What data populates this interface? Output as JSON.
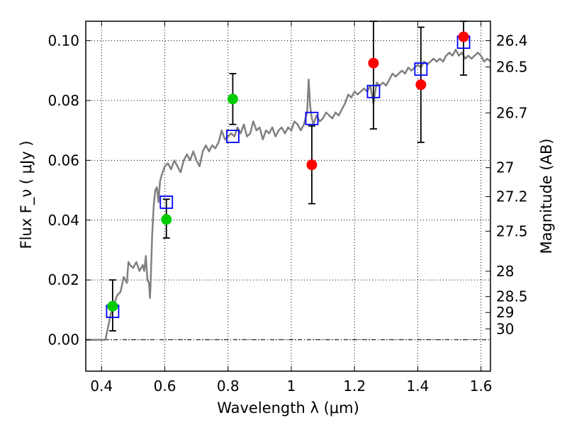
{
  "chart_data": {
    "type": "scatter",
    "xlabel": "Wavelength  λ (μm)",
    "ylabel": "Flux  F_ν  ( μJy )",
    "y2label": "Magnitude (AB)",
    "xlim": [
      0.35,
      1.63
    ],
    "ylim": [
      -0.0105,
      0.1065
    ],
    "grid": true,
    "x_ticks": [
      {
        "value": 0.4,
        "label": "0.4"
      },
      {
        "value": 0.6,
        "label": "0.6"
      },
      {
        "value": 0.8,
        "label": "0.8"
      },
      {
        "value": 1.0,
        "label": "1"
      },
      {
        "value": 1.2,
        "label": "1.2"
      },
      {
        "value": 1.4,
        "label": "1.4"
      },
      {
        "value": 1.6,
        "label": "1.6"
      }
    ],
    "y_ticks": [
      {
        "value": 0.0,
        "label": "0.00"
      },
      {
        "value": 0.02,
        "label": "0.02"
      },
      {
        "value": 0.04,
        "label": "0.04"
      },
      {
        "value": 0.06,
        "label": "0.06"
      },
      {
        "value": 0.08,
        "label": "0.08"
      },
      {
        "value": 0.1,
        "label": "0.10"
      }
    ],
    "right_ticks": [
      {
        "mag": 26.4,
        "label": "26.4"
      },
      {
        "mag": 26.5,
        "label": "26.5"
      },
      {
        "mag": 26.7,
        "label": "26.7"
      },
      {
        "mag": 27.0,
        "label": "27"
      },
      {
        "mag": 27.2,
        "label": "27.2"
      },
      {
        "mag": 27.5,
        "label": "27.5"
      },
      {
        "mag": 28.0,
        "label": "28"
      },
      {
        "mag": 28.5,
        "label": "28.5"
      },
      {
        "mag": 29.0,
        "label": "29"
      },
      {
        "mag": 30.0,
        "label": "30"
      }
    ],
    "series": [
      {
        "kind": "line",
        "color": "#808080",
        "points": [
          [
            0.35,
            0.0
          ],
          [
            0.412,
            0.0
          ],
          [
            0.42,
            0.004
          ],
          [
            0.43,
            0.009
          ],
          [
            0.44,
            0.012
          ],
          [
            0.45,
            0.015
          ],
          [
            0.46,
            0.016
          ],
          [
            0.47,
            0.021
          ],
          [
            0.48,
            0.019
          ],
          [
            0.485,
            0.026
          ],
          [
            0.49,
            0.025
          ],
          [
            0.5,
            0.024
          ],
          [
            0.51,
            0.026
          ],
          [
            0.52,
            0.023
          ],
          [
            0.53,
            0.025
          ],
          [
            0.535,
            0.023
          ],
          [
            0.54,
            0.028
          ],
          [
            0.545,
            0.02
          ],
          [
            0.55,
            0.019
          ],
          [
            0.553,
            0.014
          ],
          [
            0.555,
            0.018
          ],
          [
            0.56,
            0.035
          ],
          [
            0.565,
            0.045
          ],
          [
            0.57,
            0.05
          ],
          [
            0.575,
            0.051
          ],
          [
            0.58,
            0.046
          ],
          [
            0.585,
            0.053
          ],
          [
            0.59,
            0.055
          ],
          [
            0.6,
            0.058
          ],
          [
            0.61,
            0.059
          ],
          [
            0.62,
            0.057
          ],
          [
            0.63,
            0.06
          ],
          [
            0.64,
            0.058
          ],
          [
            0.65,
            0.056
          ],
          [
            0.66,
            0.06
          ],
          [
            0.67,
            0.062
          ],
          [
            0.68,
            0.06
          ],
          [
            0.69,
            0.063
          ],
          [
            0.7,
            0.06
          ],
          [
            0.71,
            0.058
          ],
          [
            0.72,
            0.063
          ],
          [
            0.73,
            0.065
          ],
          [
            0.74,
            0.063
          ],
          [
            0.75,
            0.065
          ],
          [
            0.76,
            0.064
          ],
          [
            0.77,
            0.066
          ],
          [
            0.78,
            0.07
          ],
          [
            0.79,
            0.067
          ],
          [
            0.8,
            0.068
          ],
          [
            0.81,
            0.069
          ],
          [
            0.82,
            0.068
          ],
          [
            0.83,
            0.071
          ],
          [
            0.84,
            0.069
          ],
          [
            0.85,
            0.072
          ],
          [
            0.86,
            0.068
          ],
          [
            0.87,
            0.069
          ],
          [
            0.88,
            0.073
          ],
          [
            0.89,
            0.07
          ],
          [
            0.9,
            0.071
          ],
          [
            0.91,
            0.067
          ],
          [
            0.92,
            0.07
          ],
          [
            0.93,
            0.069
          ],
          [
            0.94,
            0.071
          ],
          [
            0.95,
            0.068
          ],
          [
            0.96,
            0.07
          ],
          [
            0.97,
            0.071
          ],
          [
            0.98,
            0.069
          ],
          [
            0.99,
            0.071
          ],
          [
            1.0,
            0.07
          ],
          [
            1.01,
            0.073
          ],
          [
            1.02,
            0.072
          ],
          [
            1.03,
            0.07
          ],
          [
            1.04,
            0.072
          ],
          [
            1.05,
            0.076
          ],
          [
            1.055,
            0.087
          ],
          [
            1.06,
            0.078
          ],
          [
            1.065,
            0.074
          ],
          [
            1.07,
            0.072
          ],
          [
            1.08,
            0.075
          ],
          [
            1.09,
            0.073
          ],
          [
            1.1,
            0.074
          ],
          [
            1.11,
            0.076
          ],
          [
            1.12,
            0.075
          ],
          [
            1.13,
            0.074
          ],
          [
            1.14,
            0.076
          ],
          [
            1.15,
            0.075
          ],
          [
            1.16,
            0.077
          ],
          [
            1.17,
            0.079
          ],
          [
            1.18,
            0.082
          ],
          [
            1.19,
            0.081
          ],
          [
            1.2,
            0.083
          ],
          [
            1.21,
            0.082
          ],
          [
            1.22,
            0.083
          ],
          [
            1.23,
            0.084
          ],
          [
            1.24,
            0.083
          ],
          [
            1.25,
            0.085
          ],
          [
            1.26,
            0.079
          ],
          [
            1.27,
            0.086
          ],
          [
            1.28,
            0.085
          ],
          [
            1.29,
            0.086
          ],
          [
            1.3,
            0.085
          ],
          [
            1.31,
            0.087
          ],
          [
            1.32,
            0.089
          ],
          [
            1.33,
            0.088
          ],
          [
            1.34,
            0.089
          ],
          [
            1.35,
            0.09
          ],
          [
            1.36,
            0.089
          ],
          [
            1.37,
            0.091
          ],
          [
            1.38,
            0.09
          ],
          [
            1.39,
            0.091
          ],
          [
            1.4,
            0.092
          ],
          [
            1.41,
            0.091
          ],
          [
            1.42,
            0.093
          ],
          [
            1.43,
            0.092
          ],
          [
            1.44,
            0.093
          ],
          [
            1.45,
            0.094
          ],
          [
            1.46,
            0.093
          ],
          [
            1.47,
            0.094
          ],
          [
            1.48,
            0.093
          ],
          [
            1.49,
            0.095
          ],
          [
            1.5,
            0.096
          ],
          [
            1.51,
            0.095
          ],
          [
            1.52,
            0.097
          ],
          [
            1.53,
            0.095
          ],
          [
            1.54,
            0.096
          ],
          [
            1.55,
            0.094
          ],
          [
            1.56,
            0.095
          ],
          [
            1.57,
            0.094
          ],
          [
            1.58,
            0.095
          ],
          [
            1.59,
            0.096
          ],
          [
            1.6,
            0.095
          ],
          [
            1.61,
            0.093
          ],
          [
            1.62,
            0.094
          ],
          [
            1.63,
            0.093
          ]
        ]
      },
      {
        "kind": "open-square",
        "color": "#0000ff",
        "points": [
          [
            0.435,
            0.0095
          ],
          [
            0.605,
            0.046
          ],
          [
            0.815,
            0.068
          ],
          [
            1.065,
            0.074
          ],
          [
            1.26,
            0.083
          ],
          [
            1.41,
            0.0905
          ],
          [
            1.545,
            0.0995
          ]
        ]
      },
      {
        "kind": "filled-circle",
        "color": "#00cc00",
        "points": [
          {
            "x": 0.435,
            "y": 0.0112,
            "lo": 0.003,
            "hi": 0.02
          },
          {
            "x": 0.605,
            "y": 0.0402,
            "lo": 0.034,
            "hi": 0.047
          },
          {
            "x": 0.815,
            "y": 0.0805,
            "lo": 0.072,
            "hi": 0.089
          }
        ]
      },
      {
        "kind": "filled-circle",
        "color": "#ff0000",
        "points": [
          {
            "x": 1.065,
            "y": 0.0585,
            "lo": 0.0455,
            "hi": 0.0715
          },
          {
            "x": 1.26,
            "y": 0.0925,
            "lo": 0.0705,
            "hi": 0.1065
          },
          {
            "x": 1.41,
            "y": 0.0853,
            "lo": 0.066,
            "hi": 0.1045
          },
          {
            "x": 1.545,
            "y": 0.1013,
            "lo": 0.0885,
            "hi": 0.1065
          }
        ]
      }
    ]
  }
}
